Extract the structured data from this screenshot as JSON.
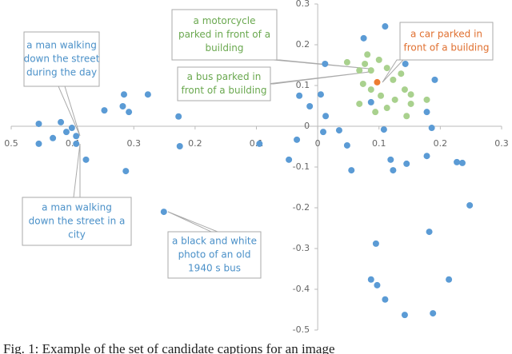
{
  "chart_data": {
    "type": "scatter",
    "caption": "Fig. 1: Example of the set of candidate captions for an image",
    "xlim": [
      -0.5,
      0.3
    ],
    "ylim": [
      -0.5,
      0.3
    ],
    "xticks": [
      {
        "value": -0.5,
        "label": "0.5"
      },
      {
        "value": -0.4,
        "label": "0.4"
      },
      {
        "value": -0.3,
        "label": "0.3"
      },
      {
        "value": -0.2,
        "label": "0.2"
      },
      {
        "value": -0.1,
        "label": "0.1"
      },
      0,
      0.1,
      0.2,
      0.3
    ],
    "yticks": [
      -0.5,
      -0.4,
      -0.3,
      -0.2,
      -0.1,
      0,
      0.1,
      0.2,
      0.3
    ],
    "series": [
      {
        "color": "#5b9bd5",
        "x": [
          -0.455,
          -0.455,
          -0.419,
          -0.432,
          -0.41,
          -0.401,
          -0.394,
          -0.394,
          -0.378,
          -0.348,
          -0.316,
          -0.318,
          -0.308,
          -0.277,
          -0.313,
          -0.227,
          -0.225,
          -0.251,
          -0.095,
          -0.047,
          -0.034,
          -0.03,
          -0.013,
          0.005,
          0.009,
          0.012,
          0.013,
          0.035,
          0.048,
          0.055,
          0.075,
          0.087,
          0.095,
          0.087,
          0.097,
          0.11,
          0.11,
          0.108,
          0.119,
          0.123,
          0.142,
          0.145,
          0.143,
          0.178,
          0.178,
          0.182,
          0.188,
          0.191,
          0.186,
          0.227,
          0.236,
          0.248,
          0.214
        ],
        "y": [
          0.006,
          -0.043,
          0.01,
          -0.029,
          -0.014,
          -0.004,
          -0.024,
          -0.043,
          -0.082,
          0.039,
          0.078,
          0.049,
          0.035,
          0.078,
          -0.11,
          0.024,
          -0.049,
          -0.21,
          -0.043,
          -0.082,
          -0.033,
          0.075,
          0.049,
          0.078,
          -0.014,
          0.153,
          0.025,
          -0.01,
          -0.047,
          -0.108,
          0.216,
          0.059,
          -0.288,
          -0.376,
          -0.39,
          0.245,
          -0.425,
          -0.008,
          -0.082,
          -0.108,
          -0.463,
          -0.092,
          0.153,
          0.035,
          -0.073,
          -0.259,
          -0.459,
          0.114,
          -0.004,
          -0.088,
          -0.09,
          -0.194,
          -0.376
        ]
      },
      {
        "color": "#a9d18e",
        "x": [
          0.048,
          0.068,
          0.077,
          0.081,
          0.087,
          0.1,
          0.113,
          0.123,
          0.136,
          0.142,
          0.152,
          0.152,
          0.126,
          0.113,
          0.087,
          0.068,
          0.094,
          0.145,
          0.178,
          0.103,
          0.074
        ],
        "y": [
          0.157,
          0.137,
          0.153,
          0.176,
          0.137,
          0.163,
          0.143,
          0.114,
          0.129,
          0.09,
          0.078,
          0.055,
          0.065,
          0.045,
          0.09,
          0.055,
          0.035,
          0.025,
          0.065,
          0.075,
          0.104
        ]
      },
      {
        "color": "#ed7d31",
        "x": [
          0.097
        ],
        "y": [
          0.108
        ]
      }
    ],
    "annotations": [
      {
        "color": "#4a90c8",
        "lines": [
          "a man walking",
          "down the street",
          "during the day"
        ]
      },
      {
        "color": "#6aa84f",
        "lines": [
          "a motorcycle",
          "parked in front of a",
          "building"
        ]
      },
      {
        "color": "#e07030",
        "lines": [
          "a car parked in",
          "front of a building"
        ]
      },
      {
        "color": "#6aa84f",
        "lines": [
          "a bus parked in",
          "front of a building"
        ]
      },
      {
        "color": "#4a90c8",
        "lines": [
          "a man walking",
          "down the street in a",
          "city"
        ]
      },
      {
        "color": "#4a90c8",
        "lines": [
          "a black and white",
          "photo of an old",
          "1940 s bus"
        ]
      }
    ]
  }
}
